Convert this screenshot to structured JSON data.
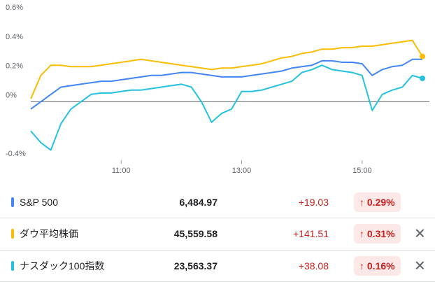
{
  "chart_data": {
    "type": "line",
    "x": [
      "9:30",
      "9:40",
      "9:50",
      "10:00",
      "10:10",
      "10:20",
      "10:30",
      "10:40",
      "10:50",
      "11:00",
      "11:10",
      "11:20",
      "11:30",
      "11:40",
      "11:50",
      "12:00",
      "12:10",
      "12:20",
      "12:30",
      "12:40",
      "12:50",
      "13:00",
      "13:10",
      "13:20",
      "13:30",
      "13:40",
      "13:50",
      "14:00",
      "14:10",
      "14:20",
      "14:30",
      "14:40",
      "14:50",
      "15:00",
      "15:10",
      "15:20",
      "15:30",
      "15:40",
      "15:50",
      "16:00"
    ],
    "xlim": [
      "9:30",
      "16:00"
    ],
    "xticks": [
      "11:00",
      "13:00",
      "15:00"
    ],
    "ylim": [
      -0.4,
      0.6
    ],
    "yticks": [
      {
        "value": -0.4,
        "label": "-0.4%"
      },
      {
        "value": 0,
        "label": "0%"
      },
      {
        "value": 0.2,
        "label": "0.2%"
      },
      {
        "value": 0.4,
        "label": "0.4%"
      },
      {
        "value": 0.6,
        "label": "0.6%"
      }
    ],
    "baseline": 0,
    "series": [
      {
        "name": "S&P 500",
        "color": "#4285f4",
        "marker_last": false,
        "values": [
          -0.05,
          0.0,
          0.05,
          0.1,
          0.11,
          0.12,
          0.13,
          0.14,
          0.14,
          0.15,
          0.16,
          0.17,
          0.18,
          0.18,
          0.19,
          0.2,
          0.2,
          0.19,
          0.18,
          0.17,
          0.17,
          0.17,
          0.18,
          0.19,
          0.2,
          0.21,
          0.23,
          0.24,
          0.25,
          0.28,
          0.28,
          0.27,
          0.27,
          0.26,
          0.18,
          0.22,
          0.24,
          0.25,
          0.29,
          0.29
        ]
      },
      {
        "name": "ダウ平均株価",
        "color": "#fbbc04",
        "marker_last": true,
        "values": [
          0.02,
          0.18,
          0.25,
          0.25,
          0.24,
          0.24,
          0.24,
          0.25,
          0.26,
          0.27,
          0.28,
          0.29,
          0.28,
          0.27,
          0.26,
          0.25,
          0.24,
          0.23,
          0.22,
          0.23,
          0.23,
          0.24,
          0.25,
          0.26,
          0.28,
          0.3,
          0.31,
          0.33,
          0.34,
          0.36,
          0.36,
          0.37,
          0.37,
          0.38,
          0.38,
          0.39,
          0.4,
          0.41,
          0.42,
          0.31
        ]
      },
      {
        "name": "ナスダック100指数",
        "color": "#24c1e0",
        "marker_last": true,
        "values": [
          -0.2,
          -0.28,
          -0.33,
          -0.15,
          -0.05,
          0.0,
          0.05,
          0.06,
          0.06,
          0.07,
          0.08,
          0.08,
          0.09,
          0.1,
          0.11,
          0.12,
          0.1,
          0.0,
          -0.14,
          -0.08,
          -0.05,
          0.07,
          0.07,
          0.08,
          0.1,
          0.12,
          0.14,
          0.2,
          0.22,
          0.25,
          0.22,
          0.21,
          0.2,
          0.18,
          -0.06,
          0.05,
          0.08,
          0.1,
          0.18,
          0.16
        ]
      }
    ]
  },
  "rows": [
    {
      "price": "6,484.97",
      "change": "+19.03",
      "change_pct": "0.29%",
      "removable": false
    },
    {
      "price": "45,559.58",
      "change": "+141.51",
      "change_pct": "0.31%",
      "removable": true
    },
    {
      "price": "23,563.37",
      "change": "+38.08",
      "change_pct": "0.16%",
      "removable": true
    }
  ]
}
